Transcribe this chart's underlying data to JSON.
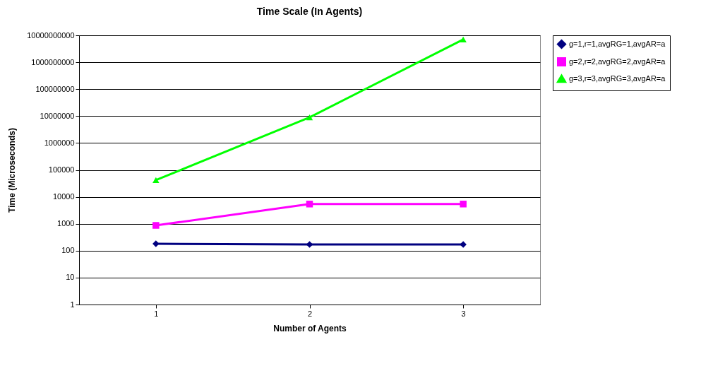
{
  "chart_data": {
    "type": "line",
    "title": "Time Scale (In Agents)",
    "xlabel": "Number of Agents",
    "ylabel": "Time (Microseconds)",
    "categories": [
      "1",
      "2",
      "3"
    ],
    "series": [
      {
        "name": "g=1,r=1,avgRG=1,avgAR=a",
        "color": "#000080",
        "marker": "diamond",
        "values": [
          180,
          170,
          170
        ]
      },
      {
        "name": "g=2,r=2,avgRG=2,avgAR=a",
        "color": "#ff00ff",
        "marker": "square",
        "values": [
          870,
          5400,
          5400
        ]
      },
      {
        "name": "g=3,r=3,avgRG=3,avgAR=a",
        "color": "#00ff00",
        "marker": "triangle",
        "values": [
          42000,
          9000000,
          7000000000
        ]
      }
    ],
    "log": "y",
    "ylim": [
      1,
      10000000000
    ],
    "yticks": [
      1,
      10,
      100,
      1000,
      10000,
      100000,
      1000000,
      10000000,
      100000000,
      1000000000,
      10000000000
    ],
    "grid": "y",
    "legend": "right",
    "line_style": "solid"
  }
}
